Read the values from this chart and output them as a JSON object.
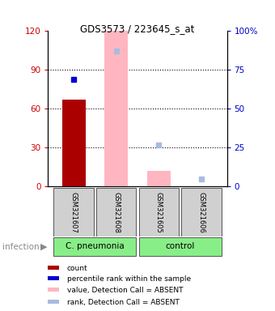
{
  "title": "GDS3573 / 223645_s_at",
  "samples": [
    "GSM321607",
    "GSM321608",
    "GSM321605",
    "GSM321606"
  ],
  "ylim_left": [
    0,
    120
  ],
  "ylim_right": [
    0,
    100
  ],
  "yticks_left": [
    0,
    30,
    60,
    90,
    120
  ],
  "yticks_right": [
    0,
    25,
    50,
    75,
    100
  ],
  "ylabel_left_color": "#cc0000",
  "ylabel_right_color": "#0000cc",
  "count_bars": {
    "GSM321607": {
      "value": 67,
      "absent": false
    },
    "GSM321608": {
      "value": 120,
      "absent": true
    },
    "GSM321605": {
      "value": 12,
      "absent": true
    },
    "GSM321606": {
      "value": 0,
      "absent": true
    }
  },
  "rank_values": {
    "GSM321607": {
      "value": 69,
      "absent": false
    },
    "GSM321608": {
      "value": 87,
      "absent": true
    },
    "GSM321605": {
      "value": 27,
      "absent": true
    },
    "GSM321606": {
      "value": 5,
      "absent": true
    }
  },
  "color_count_present": "#aa0000",
  "color_rank_present": "#0000cc",
  "color_count_absent": "#ffb6c1",
  "color_rank_absent": "#aabbdd",
  "group_spans": [
    {
      "label": "C. pneumonia",
      "start": 0,
      "end": 1,
      "color": "#88ee88"
    },
    {
      "label": "control",
      "start": 2,
      "end": 3,
      "color": "#88ee88"
    }
  ],
  "legend_items": [
    {
      "label": "count",
      "color": "#aa0000"
    },
    {
      "label": "percentile rank within the sample",
      "color": "#0000cc"
    },
    {
      "label": "value, Detection Call = ABSENT",
      "color": "#ffb6c1"
    },
    {
      "label": "rank, Detection Call = ABSENT",
      "color": "#aabbdd"
    }
  ],
  "plot_bg": "#ffffff",
  "bar_width": 0.55
}
